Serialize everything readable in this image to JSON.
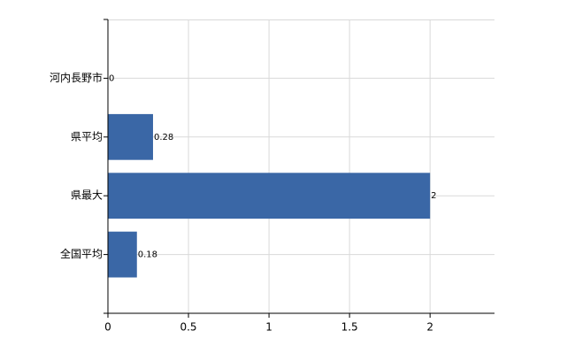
{
  "chart_data": {
    "type": "bar",
    "orientation": "horizontal",
    "categories": [
      "河内長野市",
      "県平均",
      "県最大",
      "全国平均"
    ],
    "values": [
      0,
      0.28,
      2,
      0.18
    ],
    "color": "#3a67a6",
    "xlim": [
      0,
      2.4
    ],
    "xticks": [
      0,
      0.5,
      1,
      1.5,
      2
    ],
    "grid": true
  }
}
